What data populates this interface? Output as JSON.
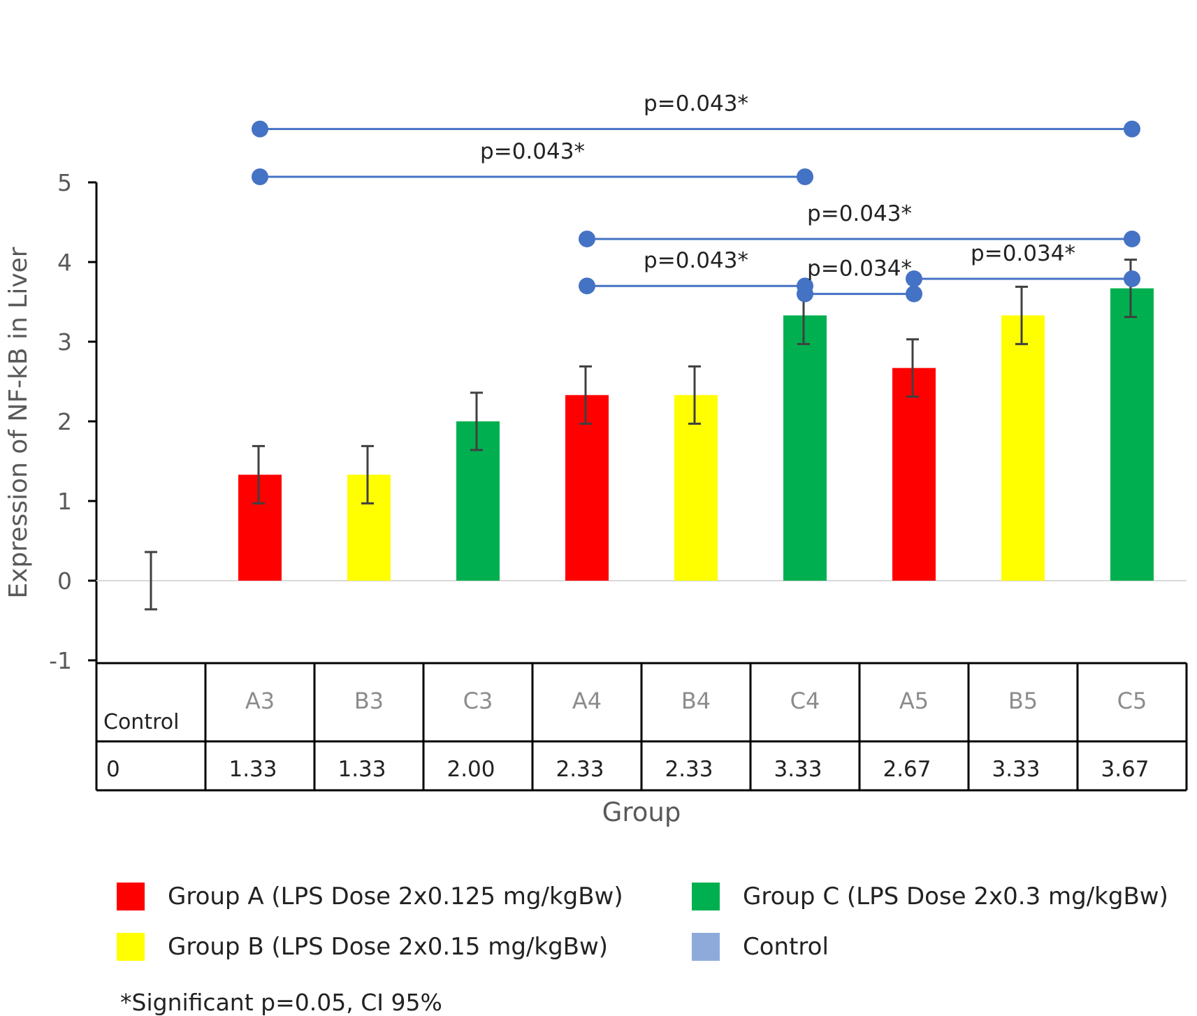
{
  "chart_data": {
    "type": "bar",
    "title": "",
    "xlabel": "Group",
    "ylabel": "Expression of NF-kB in Liver",
    "ylim": [
      -1,
      5
    ],
    "yticks": [
      -1,
      0,
      1,
      2,
      3,
      4,
      5
    ],
    "grid": false,
    "categories": [
      "Control",
      "A3",
      "B3",
      "C3",
      "A4",
      "B4",
      "C4",
      "A5",
      "B5",
      "C5"
    ],
    "values": [
      0,
      1.33,
      1.33,
      2.0,
      2.33,
      2.33,
      3.33,
      2.67,
      3.33,
      3.67
    ],
    "value_labels": [
      "0",
      "1.33",
      "1.33",
      "2.00",
      "2.33",
      "2.33",
      "3.33",
      "2.67",
      "3.33",
      "3.67"
    ],
    "bar_groups": [
      "Control",
      "A",
      "B",
      "C",
      "A",
      "B",
      "C",
      "A",
      "B",
      "C"
    ],
    "error": [
      0.36,
      0.36,
      0.36,
      0.36,
      0.36,
      0.36,
      0.36,
      0.36,
      0.36,
      0.36
    ],
    "colors": {
      "A": "#ff0000",
      "B": "#ffff00",
      "C": "#00b050",
      "Control": "#8eaadb",
      "comparison": "#4472c4",
      "errorbar": "#404040"
    },
    "comparisons": [
      {
        "from": "A3",
        "to": "C5",
        "label": "p=0.043*",
        "level": 5.67
      },
      {
        "from": "A3",
        "to": "C4",
        "label": "p=0.043*",
        "level": 5.07
      },
      {
        "from": "A4",
        "to": "C5",
        "label": "p=0.043*",
        "level": 4.29
      },
      {
        "from": "A4",
        "to": "C4",
        "label": "p=0.043*",
        "level": 3.7
      },
      {
        "from": "A5",
        "to": "C5",
        "label": "p=0.034*",
        "level": 3.79
      },
      {
        "from": "C4",
        "to": "A5",
        "label": "p=0.034*",
        "level": 3.6
      }
    ]
  },
  "legend": {
    "items": [
      {
        "key": "A",
        "label": "Group A (LPS Dose 2x0.125 mg/kgBw)"
      },
      {
        "key": "C",
        "label": "Group C (LPS Dose 2x0.3 mg/kgBw)"
      },
      {
        "key": "B",
        "label": "Group  B (LPS Dose 2x0.15 mg/kgBw)"
      },
      {
        "key": "Control",
        "label": "Control"
      }
    ]
  },
  "footnote": "*Significant p=0.05, CI 95%"
}
